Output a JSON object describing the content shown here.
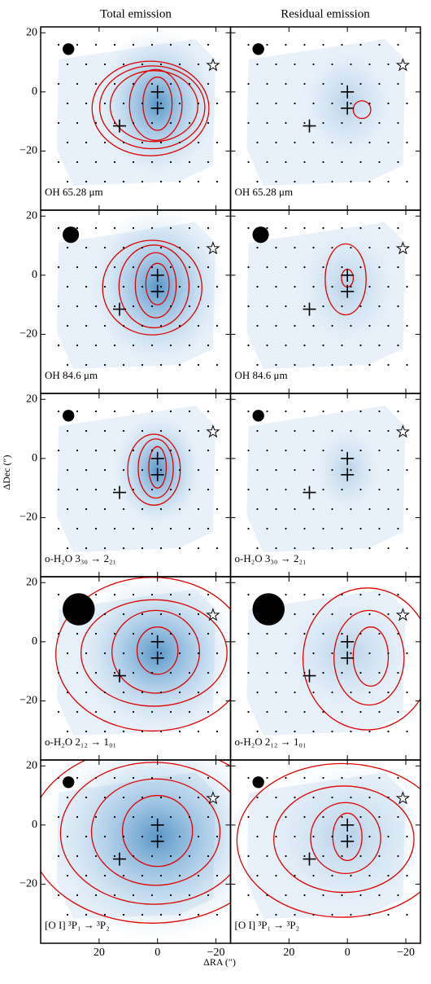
{
  "chart_data": {
    "type": "map",
    "column_titles": [
      "Total emission",
      "Residual emission"
    ],
    "xlabel": "ΔRA (″)",
    "ylabel": "ΔDec (″)",
    "xlim": [
      40,
      -25
    ],
    "ylim": [
      -40,
      22
    ],
    "xticks": [
      20,
      0,
      {
        "value": -20,
        "label": "−20"
      }
    ],
    "yticks": [
      {
        "value": -20,
        "label": "−20"
      },
      0,
      20
    ],
    "sources": {
      "x": [
        0,
        0,
        13
      ],
      "y": [
        0,
        -5.5,
        -11.5
      ]
    },
    "star": {
      "x": [
        -19
      ],
      "y": [
        9
      ]
    },
    "rows": [
      {
        "label": "OH 65.28 μm",
        "beam": 4
      },
      {
        "label": "OH 84.6 μm",
        "beam": 5.6
      },
      {
        "label": "o-H₂O 3₃₀ → 2₂₁",
        "beam": 4
      },
      {
        "label": "o-H₂O 2₁₂ → 1₀₁",
        "beam": 11
      },
      {
        "label": "[O I] ³P₁ → ³P₂",
        "beam": 4
      }
    ]
  }
}
